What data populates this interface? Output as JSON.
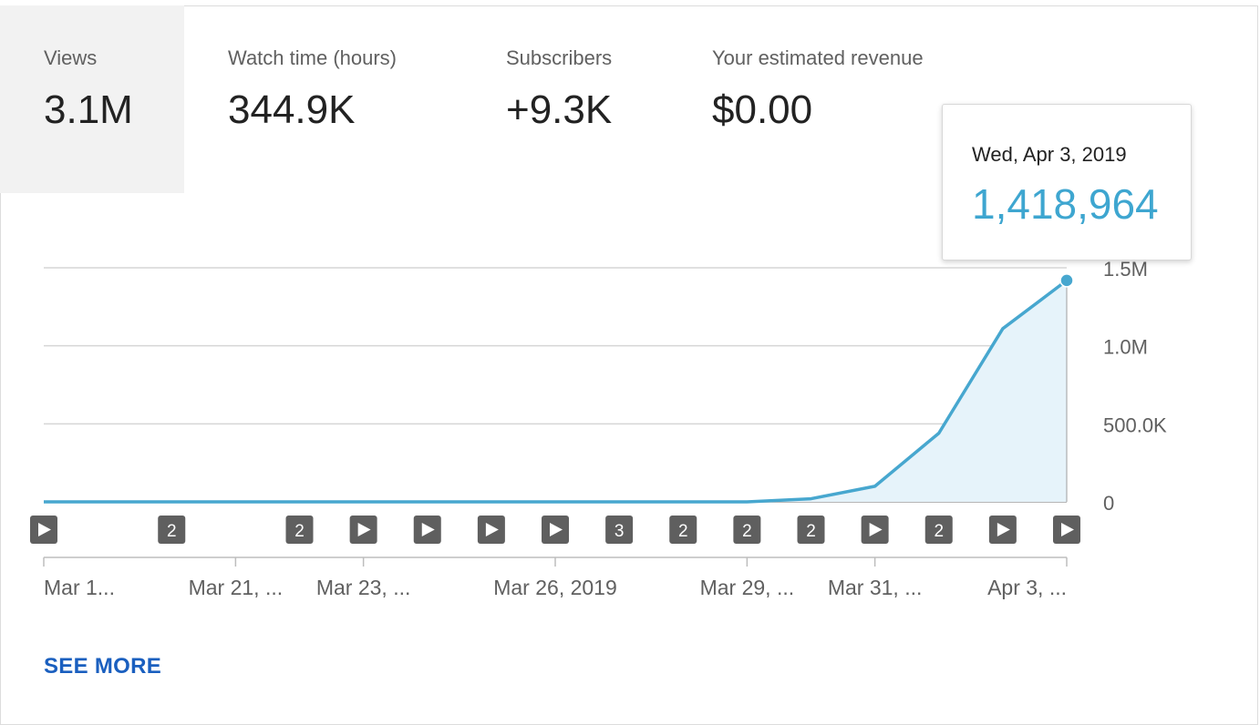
{
  "metrics": [
    {
      "label": "Views",
      "value": "3.1M"
    },
    {
      "label": "Watch time (hours)",
      "value": "344.9K"
    },
    {
      "label": "Subscribers",
      "value": "+9.3K"
    },
    {
      "label": "Your estimated revenue",
      "value": "$0.00"
    }
  ],
  "tooltip": {
    "date": "Wed, Apr 3, 2019",
    "value": "1,418,964"
  },
  "see_more_label": "SEE MORE",
  "colors": {
    "line": "#47a7cf",
    "area": "#e6f3fa",
    "marker_bg": "#5f5f5f",
    "link": "#1a5fbf"
  },
  "chart_data": {
    "type": "area",
    "y_ticks": [
      "1.5M",
      "1.0M",
      "500.0K",
      "0"
    ],
    "ylim": [
      0,
      1500000
    ],
    "x_labels": [
      "Mar 1...",
      "Mar 21, ...",
      "Mar 23, ...",
      "Mar 26, 2019",
      "Mar 29, ...",
      "Mar 31, ...",
      "Apr 3, ..."
    ],
    "x_label_days": [
      0,
      3,
      5,
      8,
      11,
      13,
      16
    ],
    "values": [
      0,
      0,
      0,
      0,
      0,
      0,
      0,
      0,
      0,
      0,
      0,
      0,
      20000,
      100000,
      440000,
      1110000,
      1418964
    ],
    "markers": [
      {
        "day": 0,
        "kind": "play",
        "text": ""
      },
      {
        "day": 2,
        "kind": "count",
        "text": "2"
      },
      {
        "day": 4,
        "kind": "count",
        "text": "2"
      },
      {
        "day": 5,
        "kind": "play",
        "text": ""
      },
      {
        "day": 6,
        "kind": "play",
        "text": ""
      },
      {
        "day": 7,
        "kind": "play",
        "text": ""
      },
      {
        "day": 8,
        "kind": "play",
        "text": ""
      },
      {
        "day": 9,
        "kind": "count",
        "text": "3"
      },
      {
        "day": 10,
        "kind": "count",
        "text": "2"
      },
      {
        "day": 11,
        "kind": "count",
        "text": "2"
      },
      {
        "day": 12,
        "kind": "count",
        "text": "2"
      },
      {
        "day": 13,
        "kind": "play",
        "text": ""
      },
      {
        "day": 14,
        "kind": "count",
        "text": "2"
      },
      {
        "day": 15,
        "kind": "play",
        "text": ""
      },
      {
        "day": 16,
        "kind": "play",
        "text": ""
      }
    ],
    "highlight_day": 16
  }
}
